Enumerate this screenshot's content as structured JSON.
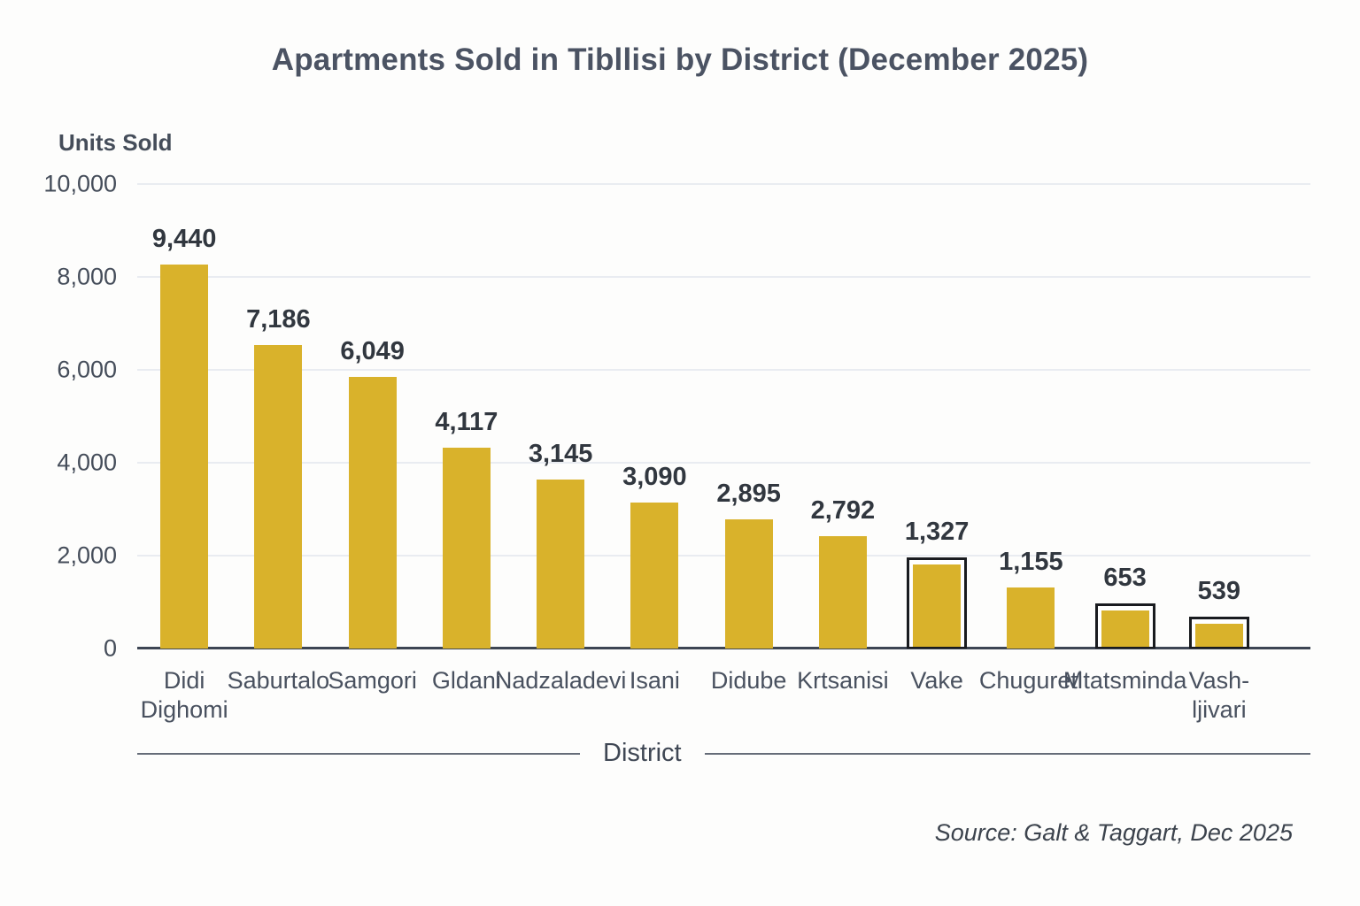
{
  "title": "Apartments Sold in Tibllisi by District (December 2025)",
  "y_axis": {
    "title": "Units Sold",
    "ticks": [
      "10,000",
      "8,000",
      "6,000",
      "4,000",
      "2,000",
      "0"
    ]
  },
  "x_axis": {
    "title": "District"
  },
  "source": "Source: Galt & Taggart, Dec 2025",
  "colors": {
    "bar_fill": "#d9b22b",
    "bar_outline": "#191b1f",
    "gridline": "#e9ecf1",
    "axis_line": "#3d4553",
    "title_text": "#4b5363",
    "value_label_text": "#31373f",
    "tick_text": "#454d5a"
  },
  "chart_data": {
    "type": "bar",
    "title": "Apartments Sold in Tibllisi by District (December 2025)",
    "xlabel": "District",
    "ylabel": "Units Sold",
    "ylim": [
      0,
      10000
    ],
    "grid": true,
    "legend": null,
    "categories": [
      "Didi Dighomi",
      "Saburtalo",
      "Samgori",
      "Gldani",
      "Nadzaladevi",
      "Isani",
      "Didube",
      "Krtsanisi",
      "Vake",
      "Chugureti",
      "Mtatsminda",
      "Vashljivari"
    ],
    "values": [
      9440,
      7186,
      6049,
      4117,
      3145,
      3090,
      2895,
      2792,
      1327,
      1155,
      653,
      539
    ],
    "value_labels": [
      "9,440",
      "7,186",
      "6,049",
      "4,117",
      "3,145",
      "3,090",
      "2,895",
      "2,792",
      "1,327",
      "1,155",
      "653",
      "539"
    ],
    "bars": [
      {
        "category": "Didi Dighomi",
        "label_lines": [
          "Didi",
          "Dighomi"
        ],
        "value": 9440,
        "value_label": "9,440",
        "display_units": 8260,
        "outlined": false
      },
      {
        "category": "Saburtalo",
        "label_lines": [
          "Saburtalo"
        ],
        "value": 7186,
        "value_label": "7,186",
        "display_units": 6540,
        "outlined": false
      },
      {
        "category": "Samgori",
        "label_lines": [
          "Samgori"
        ],
        "value": 6049,
        "value_label": "6,049",
        "display_units": 5850,
        "outlined": false
      },
      {
        "category": "Gldani",
        "label_lines": [
          "Gldani"
        ],
        "value": 4117,
        "value_label": "4,117",
        "display_units": 4320,
        "outlined": false
      },
      {
        "category": "Nadzaladevi",
        "label_lines": [
          "Nadzaladevi"
        ],
        "value": 3145,
        "value_label": "3,145",
        "display_units": 3630,
        "outlined": false
      },
      {
        "category": "Isani",
        "label_lines": [
          "Isani"
        ],
        "value": 3090,
        "value_label": "3,090",
        "display_units": 3150,
        "outlined": false
      },
      {
        "category": "Didube",
        "label_lines": [
          "Didube"
        ],
        "value": 2895,
        "value_label": "2,895",
        "display_units": 2790,
        "outlined": false
      },
      {
        "category": "Krtsanisi",
        "label_lines": [
          "Krtsanisi"
        ],
        "value": 2792,
        "value_label": "2,792",
        "display_units": 2410,
        "outlined": false
      },
      {
        "category": "Vake",
        "label_lines": [
          "Vake"
        ],
        "value": 1327,
        "value_label": "1,327",
        "display_units": 1780,
        "outlined": true
      },
      {
        "category": "Chugureti",
        "label_lines": [
          "Chugureti"
        ],
        "value": 1155,
        "value_label": "1,155",
        "display_units": 1320,
        "outlined": false
      },
      {
        "category": "Mtatsminda",
        "label_lines": [
          "Mtatsminda"
        ],
        "value": 653,
        "value_label": "653",
        "display_units": 790,
        "outlined": true
      },
      {
        "category": "Vashljivari",
        "label_lines": [
          "Vash-",
          "ljivari"
        ],
        "value": 539,
        "value_label": "539",
        "display_units": 500,
        "outlined": true
      }
    ]
  }
}
